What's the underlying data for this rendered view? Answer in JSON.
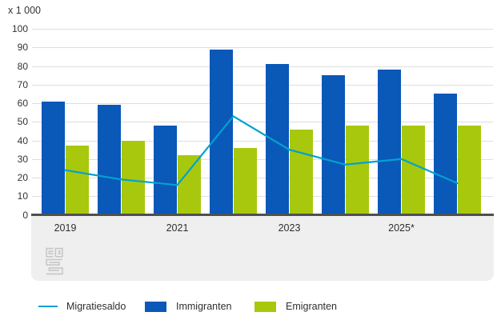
{
  "unit_label": "x 1 000",
  "legend": [
    {
      "label": "Migratiesaldo",
      "type": "line",
      "color": "#00a2d0"
    },
    {
      "label": "Immigranten",
      "type": "bar",
      "color": "#0a58b8"
    },
    {
      "label": "Emigranten",
      "type": "bar",
      "color": "#a8c80e"
    }
  ],
  "logo": {
    "name": "cbs-logo"
  },
  "chart_data": {
    "type": "bar",
    "subtype": "grouped-bars-with-line",
    "title": "",
    "unit": "x 1 000",
    "n_groups": 8,
    "x_tick_labels": [
      "2019",
      "2021",
      "2023",
      "2025*"
    ],
    "x_tick_group_index": [
      0,
      2,
      4,
      6
    ],
    "series": [
      {
        "name": "Immigranten",
        "type": "bar",
        "color": "#0a58b8",
        "values": [
          61,
          59,
          48,
          89,
          81,
          75,
          78,
          65
        ]
      },
      {
        "name": "Emigranten",
        "type": "bar",
        "color": "#a8c80e",
        "values": [
          37,
          40,
          32,
          36,
          46,
          48,
          48,
          48
        ]
      },
      {
        "name": "Migratiesaldo",
        "type": "line",
        "color": "#00a2d0",
        "values": [
          24,
          19,
          16,
          53,
          35,
          27,
          30,
          17
        ]
      }
    ],
    "y_axis": {
      "min": 0,
      "max": 100,
      "step": 10,
      "tick_labels": [
        "0",
        "10",
        "20",
        "30",
        "40",
        "50",
        "60",
        "70",
        "80",
        "90",
        "100"
      ]
    },
    "grid": true,
    "legend_position": "bottom"
  }
}
